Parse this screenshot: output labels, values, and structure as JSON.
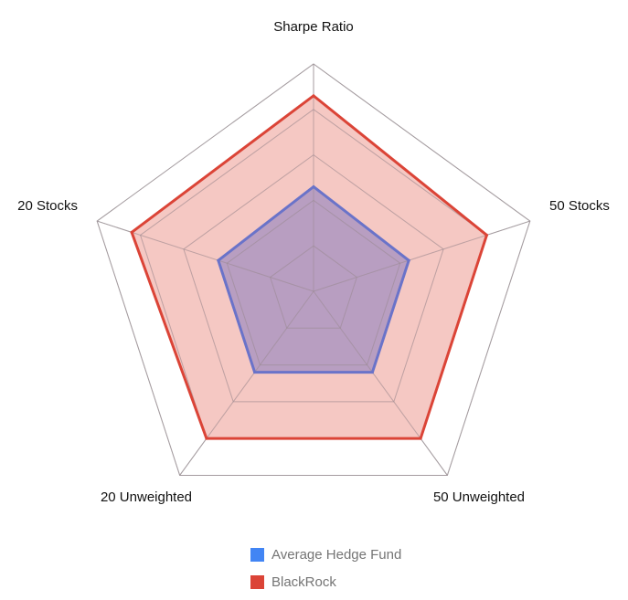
{
  "chart_data": {
    "type": "radar",
    "axes": [
      "Sharpe Ratio",
      "50 Stocks",
      "50 Unweighted",
      "20 Unweighted",
      "20 Stocks"
    ],
    "scale": [
      0,
      5
    ],
    "rings": 5,
    "series": [
      {
        "name": "Average Hedge Fund",
        "values": [
          2.3,
          2.2,
          2.2,
          2.2,
          2.2
        ],
        "legend_color": "#4285f4",
        "line_color": "#6a73c9",
        "fill_color": "#a390c0"
      },
      {
        "name": "BlackRock",
        "values": [
          4.3,
          4.0,
          4.0,
          4.0,
          4.2
        ],
        "legend_color": "#db4437",
        "line_color": "#db4437",
        "fill_color": "#f3beb9"
      }
    ],
    "legend": {
      "position": "bottom"
    },
    "grid": true
  }
}
